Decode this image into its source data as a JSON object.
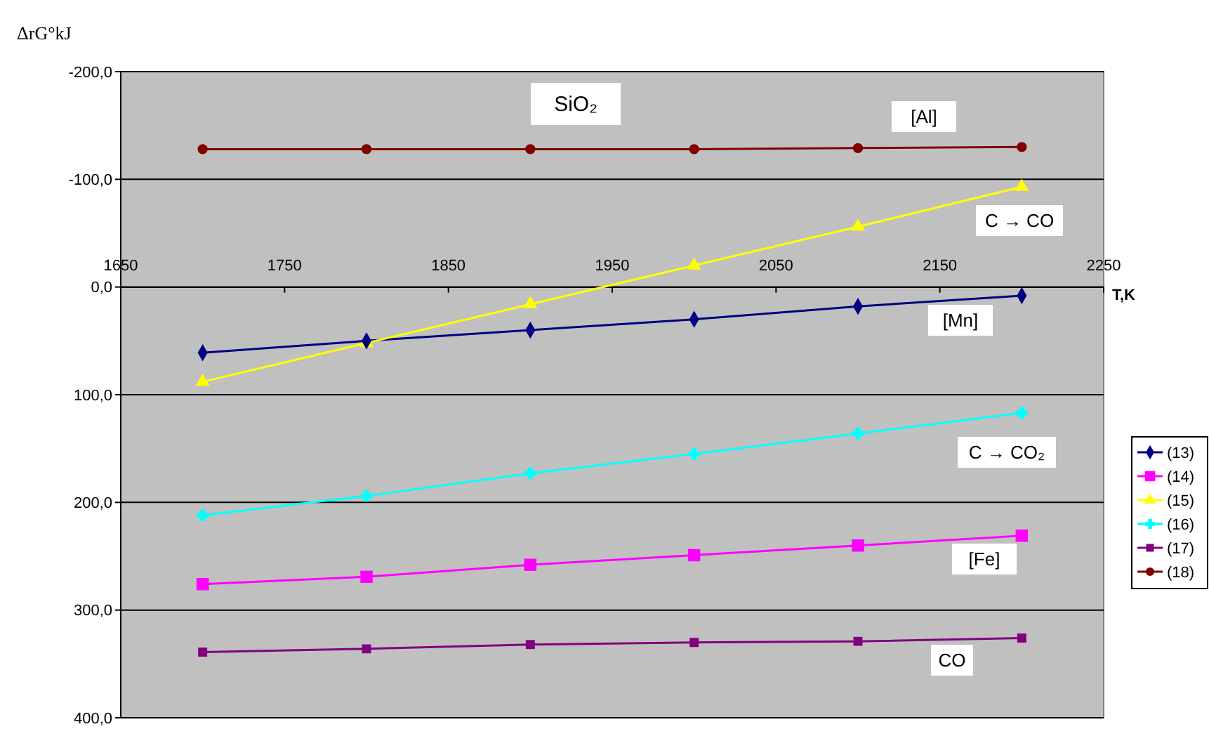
{
  "chart_data": {
    "type": "line",
    "title": "SiO₂",
    "xlabel": "T,K",
    "ylabel": "ΔrG°kJ",
    "x": [
      1700,
      1800,
      1900,
      2000,
      2100,
      2200
    ],
    "xlim": [
      1650,
      2250
    ],
    "xticks": [
      1650,
      1750,
      1850,
      1950,
      2050,
      2150,
      2250
    ],
    "ylim": [
      400,
      -200
    ],
    "yticks": [
      {
        "value": -200,
        "label": "-200,0"
      },
      {
        "value": -100,
        "label": "-100,0"
      },
      {
        "value": 0,
        "label": "0,0"
      },
      {
        "value": 100,
        "label": "100,0"
      },
      {
        "value": 200,
        "label": "200,0"
      },
      {
        "value": 300,
        "label": "300,0"
      },
      {
        "value": 400,
        "label": "400,0"
      }
    ],
    "grid": "y",
    "legend": "right",
    "series": [
      {
        "name": "(13)",
        "color": "#000080",
        "marker": "diamond",
        "values": [
          61,
          50,
          40,
          30,
          18,
          8
        ]
      },
      {
        "name": "(14)",
        "color": "#ff00ff",
        "marker": "square",
        "values": [
          276,
          269,
          258,
          249,
          240,
          231
        ]
      },
      {
        "name": "(15)",
        "color": "#ffff00",
        "marker": "triangle",
        "values": [
          88,
          52,
          16,
          -20,
          -56,
          -93
        ]
      },
      {
        "name": "(16)",
        "color": "#00ffff",
        "marker": "cross",
        "values": [
          212,
          194,
          173,
          155,
          136,
          117
        ]
      },
      {
        "name": "(17)",
        "color": "#800080",
        "marker": "square",
        "values": [
          339,
          336,
          332,
          330,
          329,
          326
        ]
      },
      {
        "name": "(18)",
        "color": "#800000",
        "marker": "circle",
        "values": [
          -128,
          -128,
          -128,
          -128,
          -129,
          -130
        ]
      }
    ],
    "annotations": [
      "[Al]",
      "C → CO",
      "[Mn]",
      "C → CO₂",
      "[Fe]",
      "CO"
    ]
  }
}
